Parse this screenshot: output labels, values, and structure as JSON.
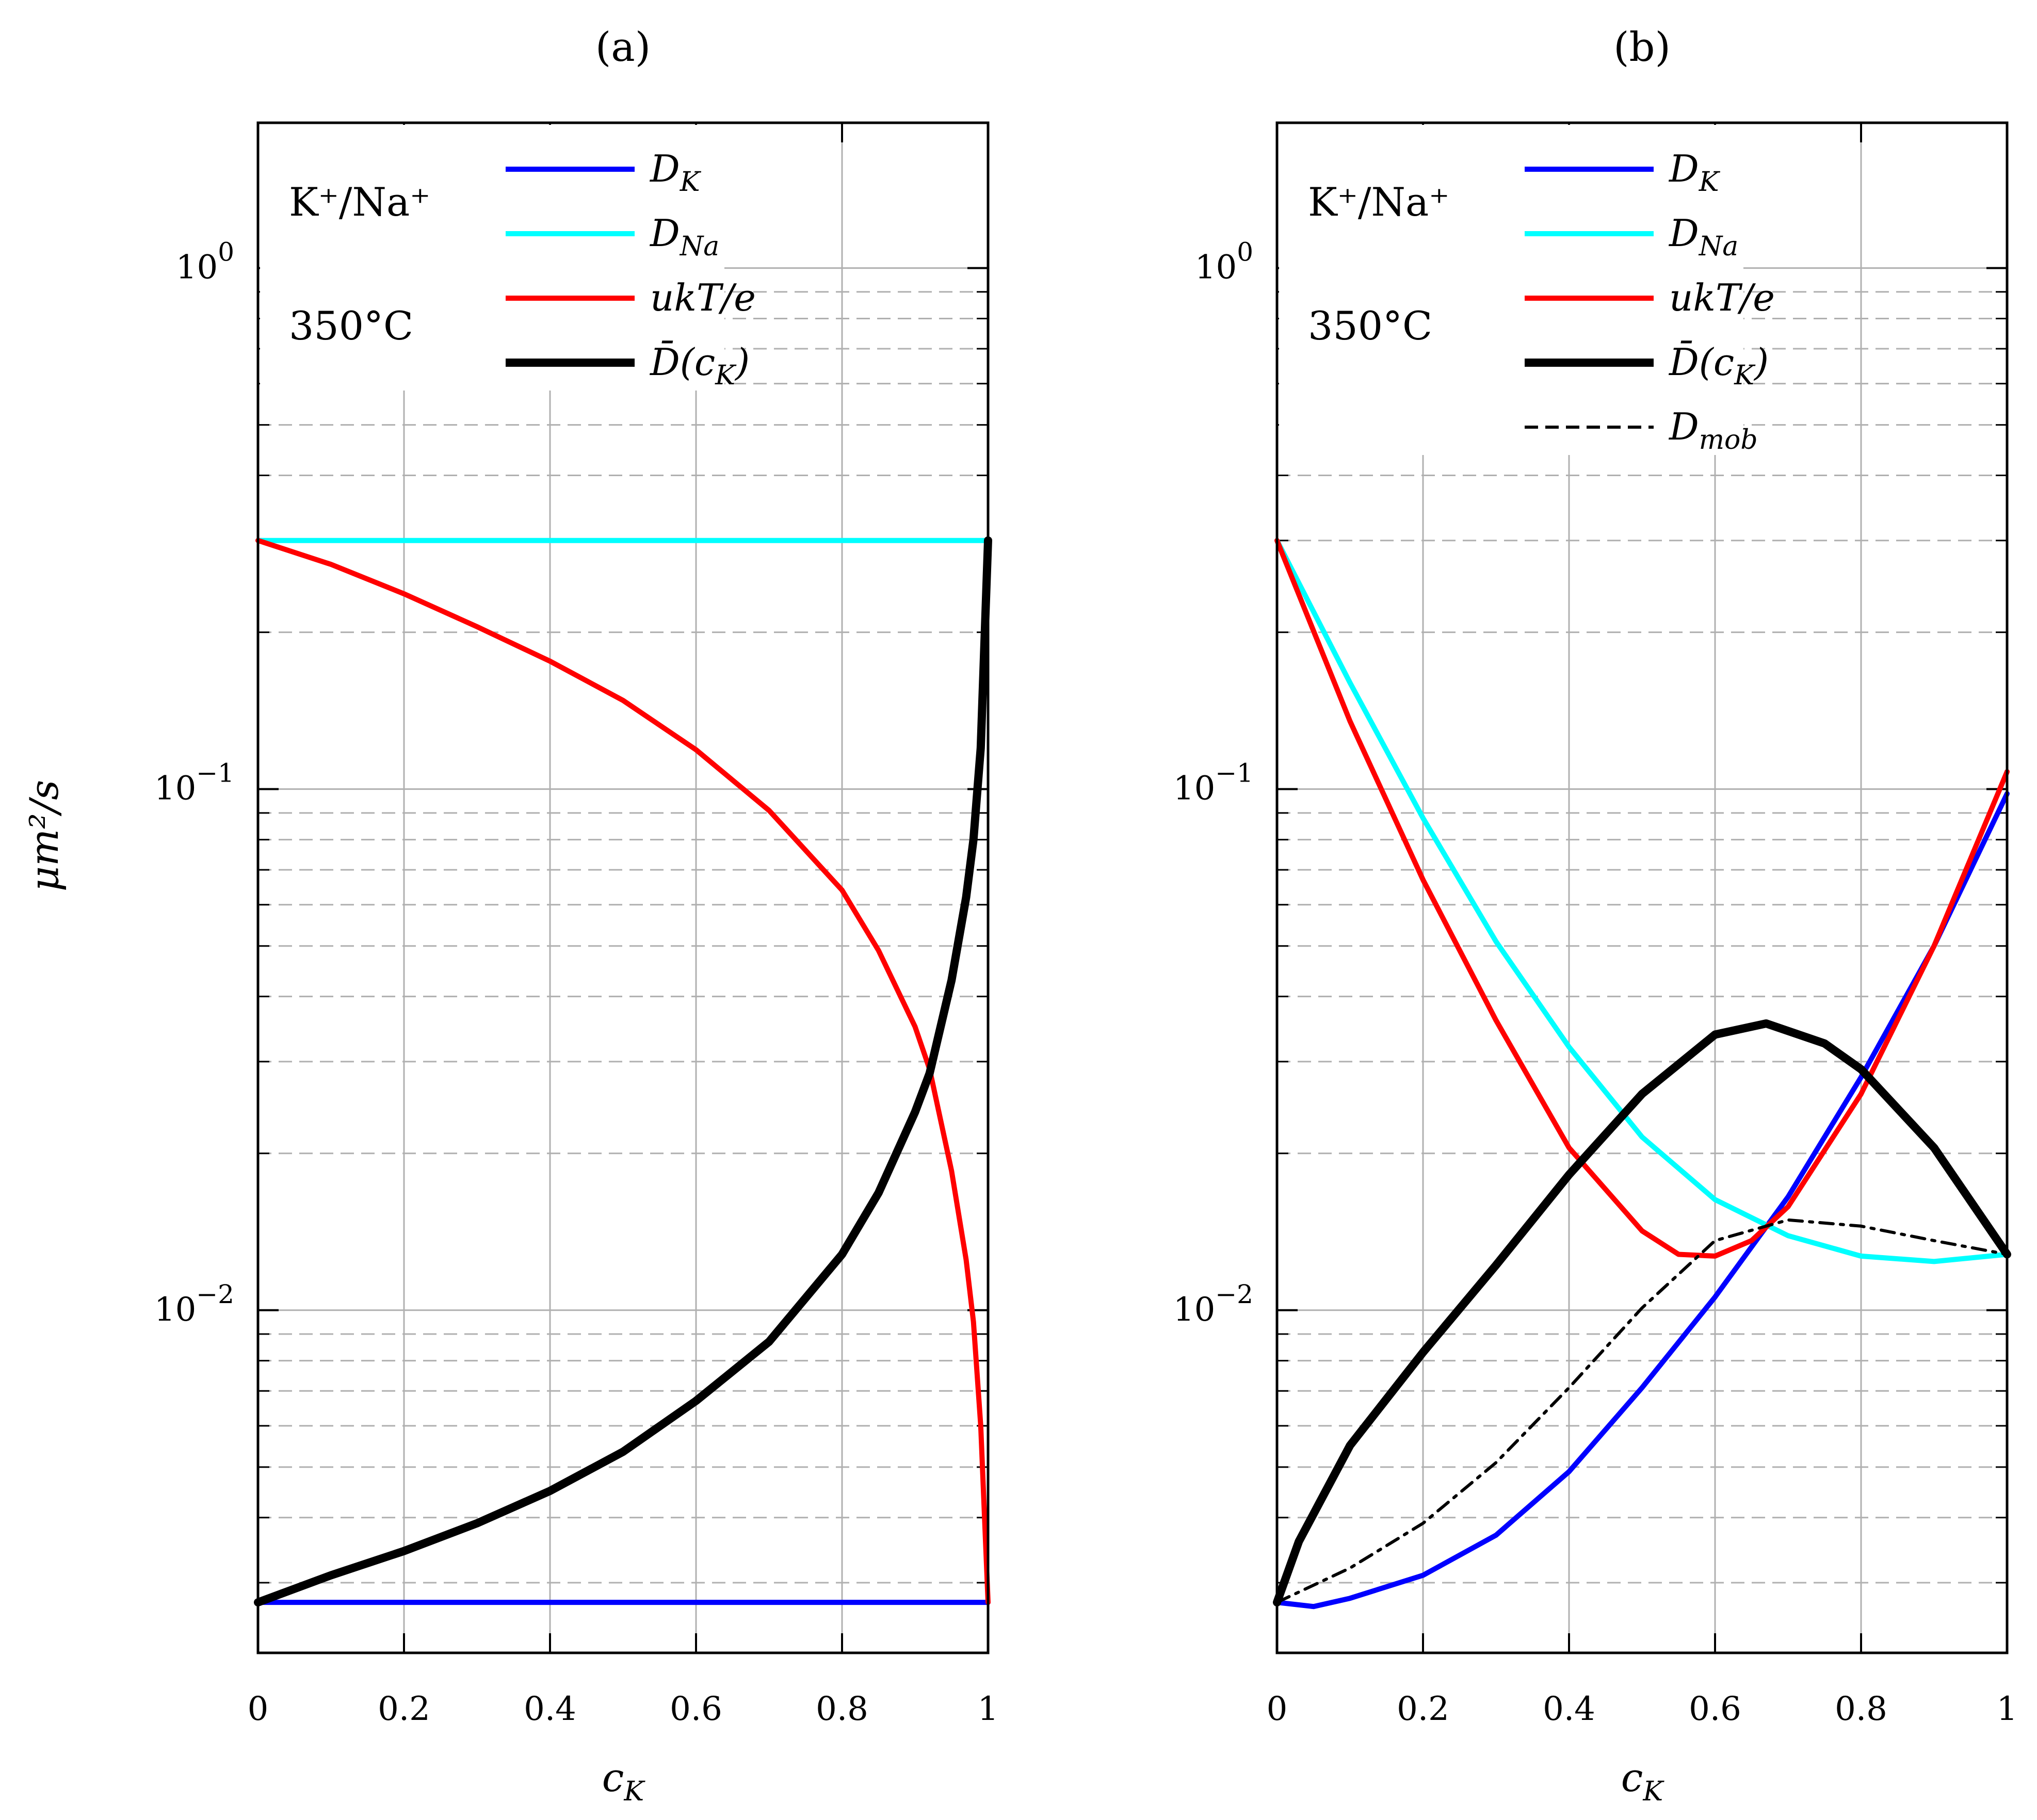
{
  "figure": {
    "ylabel": "μm²/s",
    "colors": {
      "D_K": "#0000ff",
      "D_Na": "#00ffff",
      "ukT_e": "#ff0000",
      "Dbar": "#000000",
      "D_mob": "#000000",
      "grid": "#c0c0c0"
    }
  },
  "chart_data": [
    {
      "type": "line",
      "panel": "(a)",
      "title": "(a)",
      "xlabel": "c_K",
      "ylabel": "μm²/s",
      "yscale": "log",
      "xlim": [
        0,
        1
      ],
      "ylim": [
        0.0022,
        1.9
      ],
      "xticks": [
        0,
        0.2,
        0.4,
        0.6,
        0.8,
        1
      ],
      "xtick_labels": [
        "0",
        "0.2",
        "0.4",
        "0.6",
        "0.8",
        "1"
      ],
      "yticks": [
        0.01,
        0.1,
        1
      ],
      "ytick_labels": [
        {
          "base": "10",
          "exp": "−2"
        },
        {
          "base": "10",
          "exp": "−1"
        },
        {
          "base": "10",
          "exp": "0"
        }
      ],
      "annotations": {
        "system": "K⁺/Na⁺",
        "temperature": "350°C"
      },
      "series": [
        {
          "name": "D_K",
          "label_main": "D",
          "label_sub": "K",
          "color": "#0000ff",
          "style": "solid",
          "x": [
            0,
            1
          ],
          "y": [
            0.00275,
            0.00275
          ]
        },
        {
          "name": "D_Na",
          "label_main": "D",
          "label_sub": "Na",
          "color": "#00ffff",
          "style": "solid",
          "x": [
            0,
            1
          ],
          "y": [
            0.3,
            0.3
          ]
        },
        {
          "name": "ukT/e",
          "label_main": "ukT/e",
          "label_sub": "",
          "color": "#ff0000",
          "style": "solid",
          "x": [
            0,
            0.1,
            0.2,
            0.3,
            0.4,
            0.5,
            0.6,
            0.7,
            0.8,
            0.85,
            0.9,
            0.92,
            0.95,
            0.97,
            0.98,
            0.99,
            1
          ],
          "y": [
            0.3,
            0.27,
            0.237,
            0.205,
            0.176,
            0.148,
            0.119,
            0.091,
            0.064,
            0.049,
            0.035,
            0.029,
            0.0185,
            0.0125,
            0.0095,
            0.006,
            0.00275
          ]
        },
        {
          "name": "D̄(c_K)",
          "label_main": "D̄(c",
          "label_sub": "K",
          "label_tail": ")",
          "color": "#000000",
          "style": "thick",
          "x": [
            0,
            0.1,
            0.2,
            0.3,
            0.4,
            0.5,
            0.6,
            0.7,
            0.8,
            0.85,
            0.9,
            0.92,
            0.95,
            0.97,
            0.98,
            0.99,
            1
          ],
          "y": [
            0.00275,
            0.0031,
            0.00345,
            0.0039,
            0.0045,
            0.00535,
            0.0067,
            0.0087,
            0.0128,
            0.0168,
            0.024,
            0.0285,
            0.043,
            0.062,
            0.08,
            0.12,
            0.3
          ]
        }
      ]
    },
    {
      "type": "line",
      "panel": "(b)",
      "title": "(b)",
      "xlabel": "c_K",
      "ylabel": "",
      "yscale": "log",
      "xlim": [
        0,
        1
      ],
      "ylim": [
        0.0022,
        1.9
      ],
      "xticks": [
        0,
        0.2,
        0.4,
        0.6,
        0.8,
        1
      ],
      "xtick_labels": [
        "0",
        "0.2",
        "0.4",
        "0.6",
        "0.8",
        "1"
      ],
      "yticks": [
        0.01,
        0.1,
        1
      ],
      "ytick_labels": [
        {
          "base": "10",
          "exp": "−2"
        },
        {
          "base": "10",
          "exp": "−1"
        },
        {
          "base": "10",
          "exp": "0"
        }
      ],
      "annotations": {
        "system": "K⁺/Na⁺",
        "temperature": "350°C"
      },
      "series": [
        {
          "name": "D_K",
          "label_main": "D",
          "label_sub": "K",
          "color": "#0000ff",
          "style": "solid",
          "x": [
            0,
            0.05,
            0.1,
            0.2,
            0.3,
            0.4,
            0.5,
            0.6,
            0.7,
            0.8,
            0.9,
            1
          ],
          "y": [
            0.00275,
            0.0027,
            0.0028,
            0.0031,
            0.0037,
            0.0049,
            0.0071,
            0.0106,
            0.0165,
            0.028,
            0.05,
            0.098
          ]
        },
        {
          "name": "D_Na",
          "label_main": "D",
          "label_sub": "Na",
          "color": "#00ffff",
          "style": "solid",
          "x": [
            0,
            0.1,
            0.2,
            0.3,
            0.4,
            0.5,
            0.6,
            0.7,
            0.8,
            0.9,
            1
          ],
          "y": [
            0.3,
            0.16,
            0.088,
            0.051,
            0.032,
            0.0215,
            0.0163,
            0.0139,
            0.0127,
            0.0124,
            0.0128
          ]
        },
        {
          "name": "ukT/e",
          "label_main": "ukT/e",
          "label_sub": "",
          "color": "#ff0000",
          "style": "solid",
          "x": [
            0,
            0.1,
            0.2,
            0.3,
            0.4,
            0.5,
            0.55,
            0.6,
            0.65,
            0.7,
            0.8,
            0.9,
            1
          ],
          "y": [
            0.3,
            0.135,
            0.067,
            0.036,
            0.0205,
            0.0142,
            0.0128,
            0.0127,
            0.0136,
            0.0158,
            0.026,
            0.05,
            0.108
          ]
        },
        {
          "name": "D̄(c_K)",
          "label_main": "D̄(c",
          "label_sub": "K",
          "label_tail": ")",
          "color": "#000000",
          "style": "thick",
          "x": [
            0,
            0.03,
            0.1,
            0.2,
            0.3,
            0.4,
            0.5,
            0.6,
            0.67,
            0.75,
            0.8,
            0.9,
            1
          ],
          "y": [
            0.00275,
            0.0036,
            0.0055,
            0.0083,
            0.0122,
            0.0182,
            0.026,
            0.0338,
            0.0355,
            0.0325,
            0.029,
            0.0205,
            0.0128
          ]
        },
        {
          "name": "D_mob",
          "label_main": "D",
          "label_sub": "mob",
          "color": "#000000",
          "style": "dashed",
          "x": [
            0,
            0.1,
            0.2,
            0.3,
            0.4,
            0.5,
            0.6,
            0.7,
            0.8,
            0.9,
            1
          ],
          "y": [
            0.00275,
            0.0032,
            0.0039,
            0.0051,
            0.0071,
            0.0101,
            0.0136,
            0.0149,
            0.0145,
            0.0136,
            0.0128
          ]
        }
      ]
    }
  ]
}
